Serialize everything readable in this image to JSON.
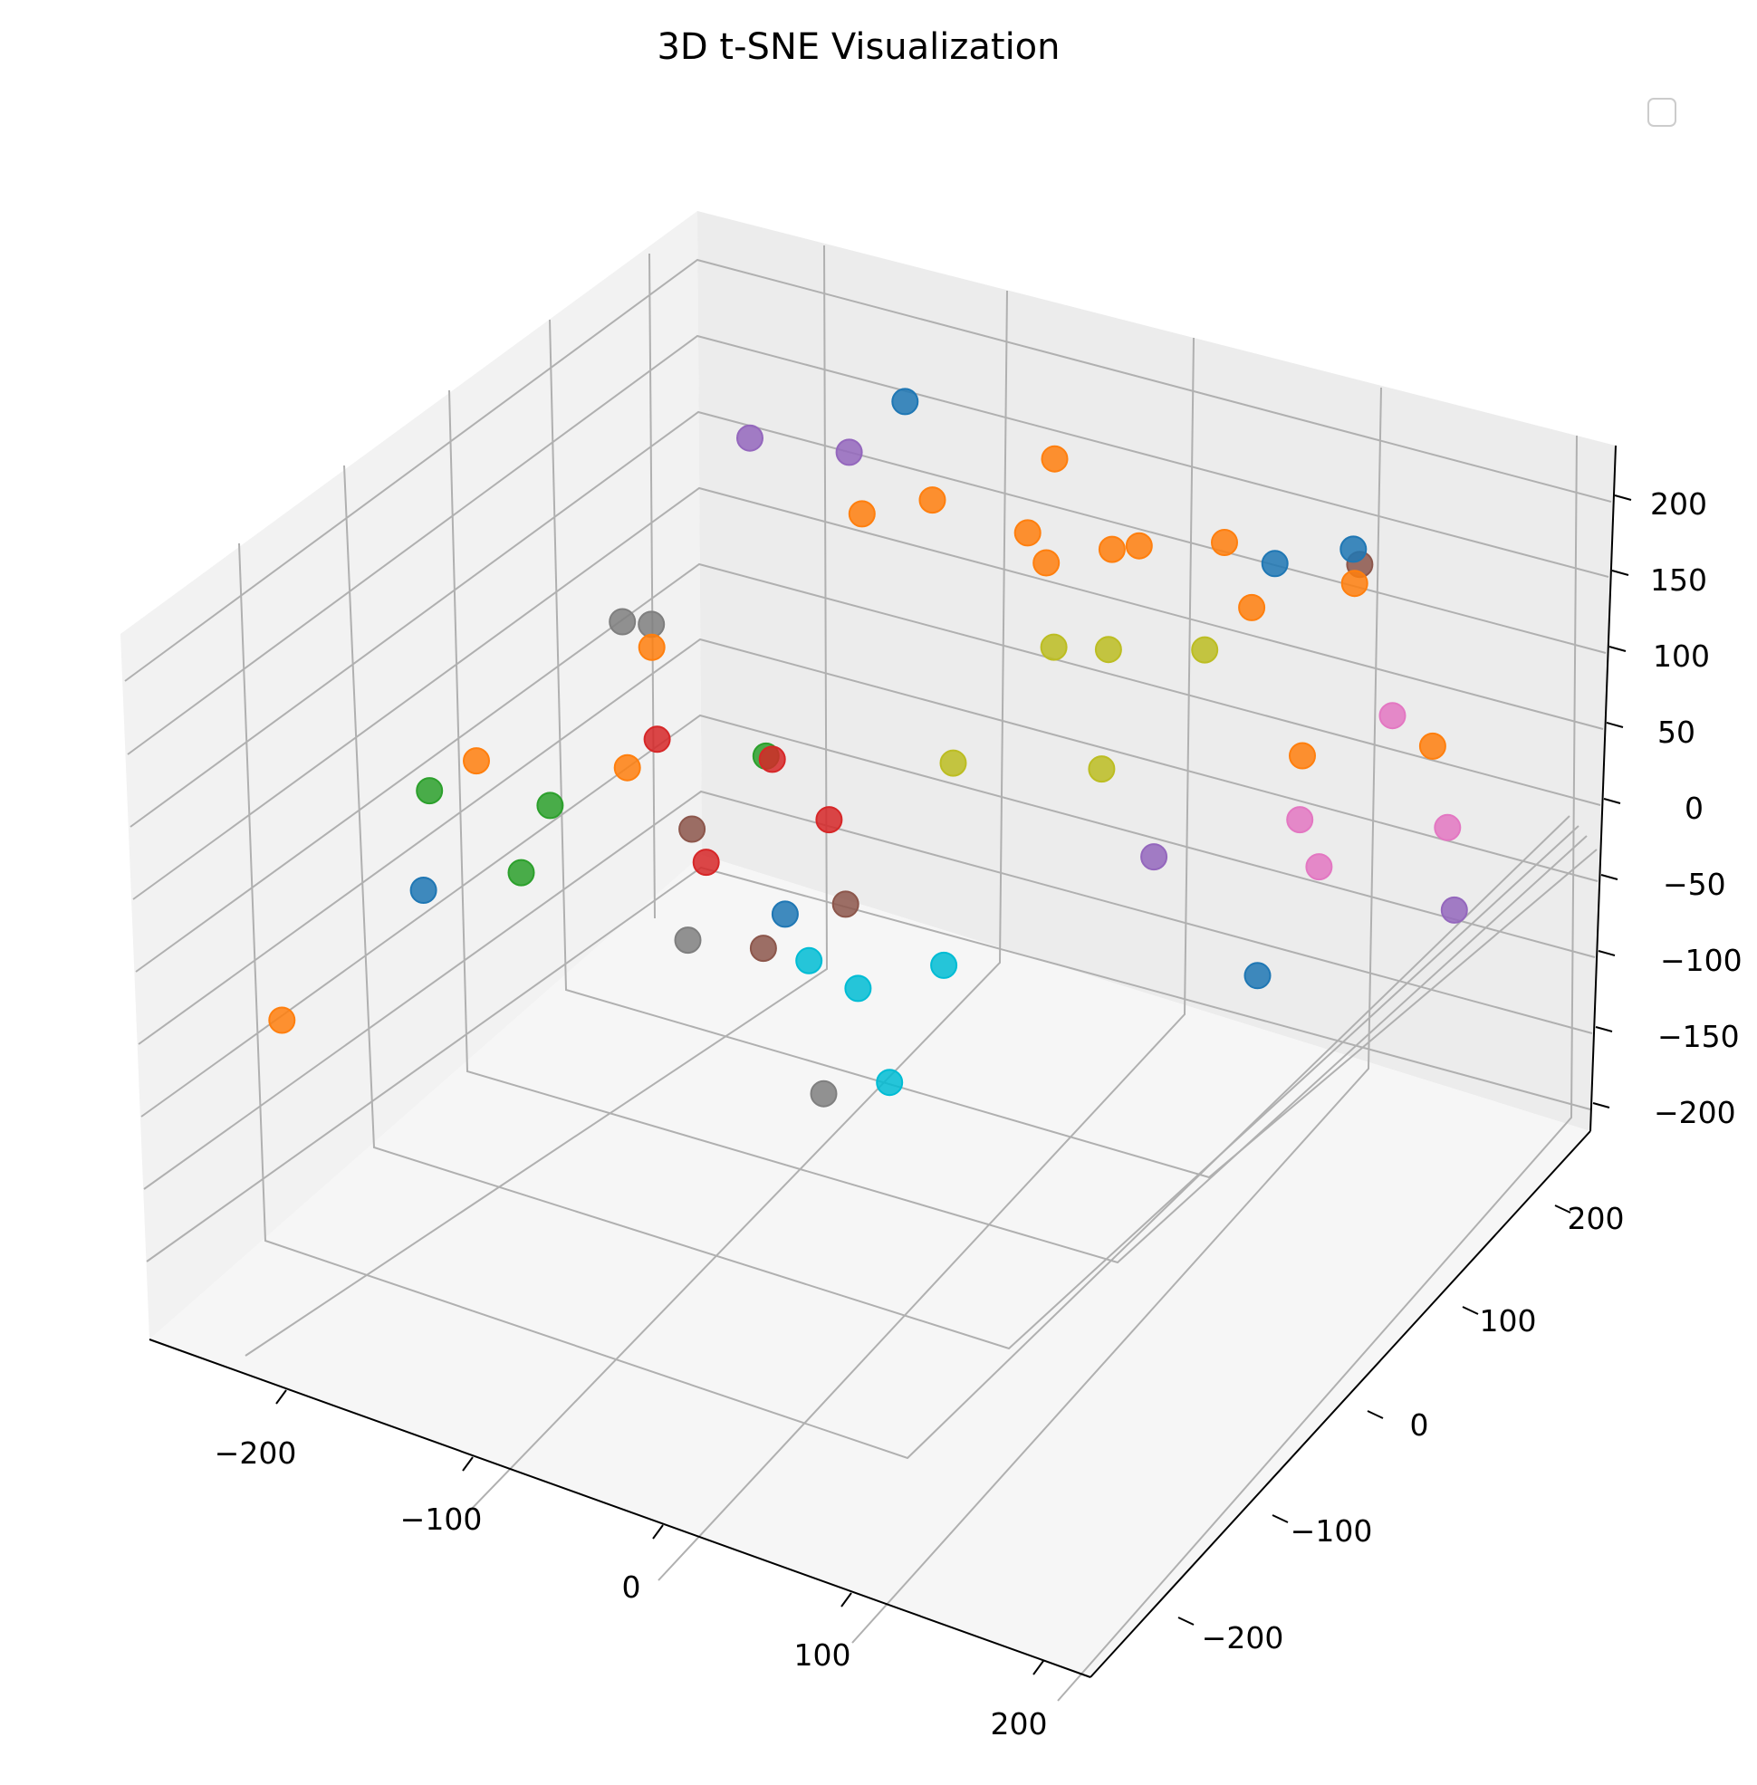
{
  "chart_data": {
    "type": "scatter3d",
    "title": "3D t-SNE Visualization",
    "xlim": [
      -250,
      200
    ],
    "ylim": [
      -250,
      250
    ],
    "zlim": [
      -210,
      225
    ],
    "x_ticks": [
      "−200",
      "−100",
      "0",
      "100",
      "200"
    ],
    "y_ticks": [
      "−200",
      "−100",
      "0",
      "100",
      "200"
    ],
    "z_ticks": [
      "−200",
      "−150",
      "−100",
      "−50",
      "0",
      "50",
      "100",
      "150",
      "200"
    ],
    "legend": {
      "placement": "top-right",
      "entries": []
    },
    "grid": true,
    "points": [
      {
        "x": -118,
        "y": 113,
        "z": 145,
        "color": "#9467bd"
      },
      {
        "x": -113,
        "y": 154,
        "z": 152,
        "color": "#1f77b4"
      },
      {
        "x": -174,
        "y": 123,
        "z": 122,
        "color": "#9467bd"
      },
      {
        "x": -73,
        "y": 217,
        "z": 94,
        "color": "#ff7f0e"
      },
      {
        "x": -37,
        "y": 229,
        "z": 49,
        "color": "#ff7f0e"
      },
      {
        "x": -85,
        "y": 214,
        "z": 45,
        "color": "#ff7f0e"
      },
      {
        "x": -53,
        "y": 233,
        "z": 37,
        "color": "#ff7f0e"
      },
      {
        "x": -165,
        "y": 207,
        "z": 25,
        "color": "#ff7f0e"
      },
      {
        "x": -143,
        "y": 231,
        "z": 28,
        "color": "#ff7f0e"
      },
      {
        "x": -83,
        "y": 227,
        "z": 19,
        "color": "#ff7f0e"
      },
      {
        "x": -8,
        "y": 254,
        "z": 48,
        "color": "#ff7f0e"
      },
      {
        "x": 21,
        "y": 248,
        "z": 52,
        "color": "#1f77b4"
      },
      {
        "x": -5,
        "y": 273,
        "z": -3,
        "color": "#ff7f0e"
      },
      {
        "x": 76,
        "y": 227,
        "z": 90,
        "color": "#8c564b"
      },
      {
        "x": 30,
        "y": 302,
        "z": 30,
        "color": "#1f77b4"
      },
      {
        "x": 62,
        "y": 247,
        "z": 59,
        "color": "#ff7f0e"
      },
      {
        "x": -229,
        "y": 106,
        "z": -5,
        "color": "#7f7f7f"
      },
      {
        "x": -220,
        "y": 116,
        "z": -9,
        "color": "#7f7f7f"
      },
      {
        "x": -226,
        "y": 127,
        "z": -33,
        "color": "#ff7f0e"
      },
      {
        "x": -74,
        "y": 218,
        "z": -23,
        "color": "#bcbd22"
      },
      {
        "x": -52,
        "y": 228,
        "z": -21,
        "color": "#bcbd22"
      },
      {
        "x": -22,
        "y": 261,
        "z": -29,
        "color": "#bcbd22"
      },
      {
        "x": -155,
        "y": 104,
        "z": -53,
        "color": "#2ca02c"
      },
      {
        "x": -196,
        "y": 79,
        "z": -45,
        "color": "#d62728"
      },
      {
        "x": -149,
        "y": 99,
        "z": -49,
        "color": "#d62728"
      },
      {
        "x": -92,
        "y": 160,
        "z": -65,
        "color": "#bcbd22"
      },
      {
        "x": -262,
        "y": 34,
        "z": -59,
        "color": "#ff7f0e"
      },
      {
        "x": -231,
        "y": 114,
        "z": -101,
        "color": "#ff7f0e"
      },
      {
        "x": -275,
        "y": 15,
        "z": -71,
        "color": "#2ca02c"
      },
      {
        "x": -180,
        "y": 82,
        "z": -95,
        "color": "#8c564b"
      },
      {
        "x": -139,
        "y": 132,
        "z": -103,
        "color": "#d62728"
      },
      {
        "x": -56,
        "y": 229,
        "z": -97,
        "color": "#bcbd22"
      },
      {
        "x": 11,
        "y": 290,
        "z": -98,
        "color": "#ff7f0e"
      },
      {
        "x": 64,
        "y": 313,
        "z": -83,
        "color": "#ff7f0e"
      },
      {
        "x": 47,
        "y": 307,
        "z": -68,
        "color": "#e377c2"
      },
      {
        "x": -237,
        "y": 30,
        "z": -114,
        "color": "#2ca02c"
      },
      {
        "x": -240,
        "y": 61,
        "z": -94,
        "color": "#2ca02c"
      },
      {
        "x": -174,
        "y": 84,
        "z": -114,
        "color": "#d62728"
      },
      {
        "x": 4,
        "y": 300,
        "z": -147,
        "color": "#e377c2"
      },
      {
        "x": 28,
        "y": 275,
        "z": -149,
        "color": "#e377c2"
      },
      {
        "x": 55,
        "y": 342,
        "z": -156,
        "color": "#e377c2"
      },
      {
        "x": -282,
        "y": 22,
        "z": -140,
        "color": "#1f77b4"
      },
      {
        "x": -138,
        "y": 145,
        "z": -163,
        "color": "#8c564b"
      },
      {
        "x": -163,
        "y": 135,
        "z": -174,
        "color": "#1f77b4"
      },
      {
        "x": -54,
        "y": 272,
        "z": -178,
        "color": "#9467bd"
      },
      {
        "x": -174,
        "y": 135,
        "z": -200,
        "color": "#8c564b"
      },
      {
        "x": -214,
        "y": 138,
        "z": -215,
        "color": "#7f7f7f"
      },
      {
        "x": -164,
        "y": 158,
        "z": -218,
        "color": "#00bcd4"
      },
      {
        "x": -138,
        "y": 156,
        "z": -222,
        "color": "#00bcd4"
      },
      {
        "x": -107,
        "y": 178,
        "z": -208,
        "color": "#00bcd4"
      },
      {
        "x": 63,
        "y": 334,
        "z": -198,
        "color": "#9467bd"
      },
      {
        "x": -10,
        "y": 287,
        "z": -241,
        "color": "#1f77b4"
      },
      {
        "x": -126,
        "y": 163,
        "z": -279,
        "color": "#00bcd4"
      },
      {
        "x": -148,
        "y": 143,
        "z": -283,
        "color": "#7f7f7f"
      },
      {
        "x": -327,
        "y": -25,
        "z": -210,
        "color": "#ff7f0e"
      }
    ]
  }
}
